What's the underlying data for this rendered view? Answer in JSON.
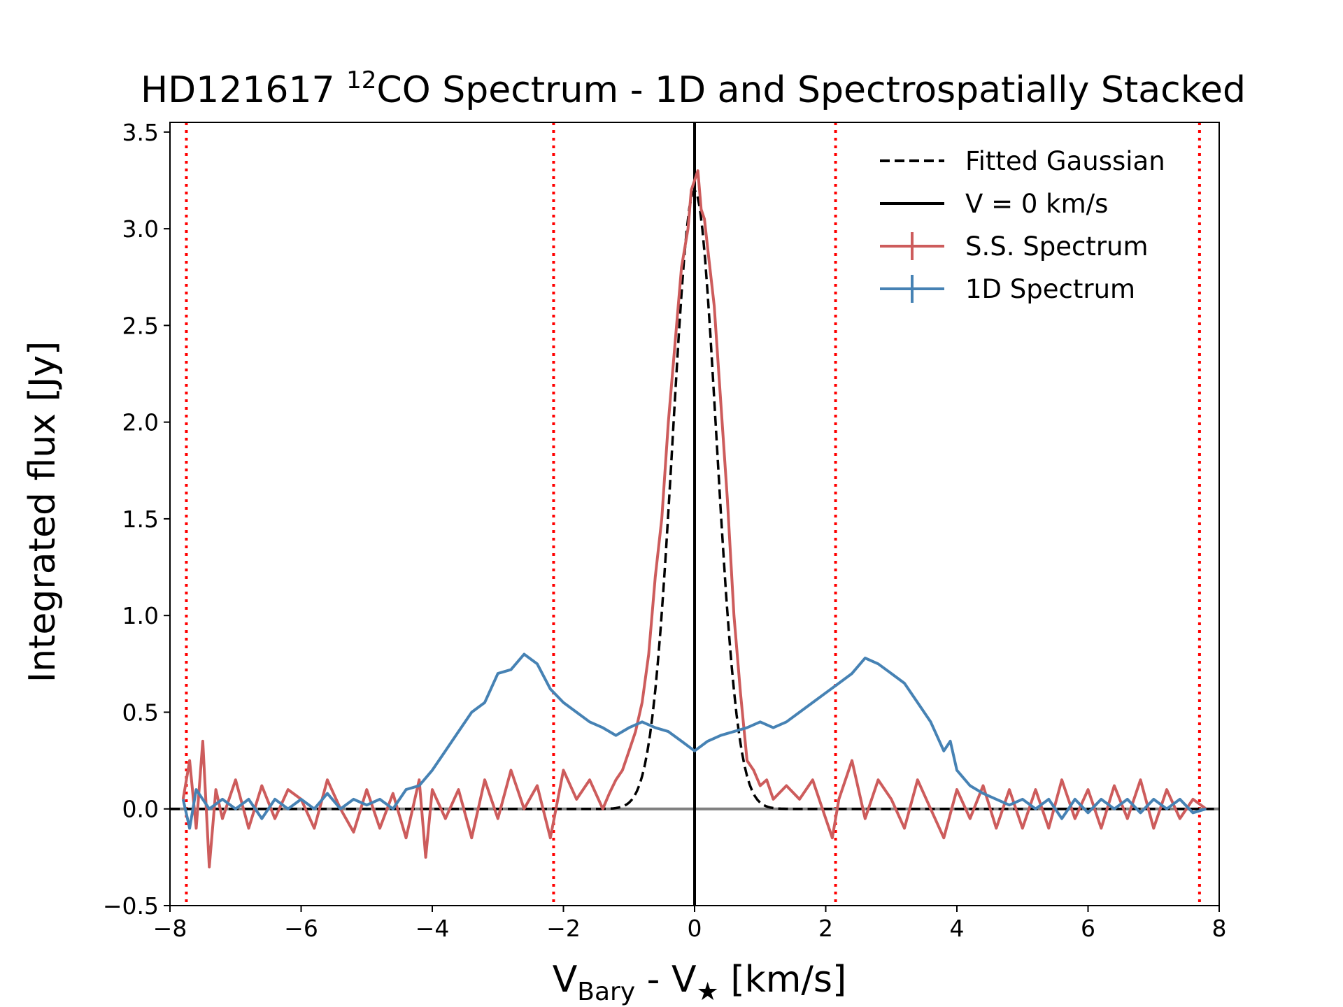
{
  "chart_data": {
    "type": "line",
    "title": {
      "prefix": "HD121617 ",
      "superscript": "12",
      "suffix": "CO Spectrum - 1D and Spectrospatially Stacked"
    },
    "xlabel": {
      "v1": "V",
      "v1_sub": "Bary",
      "mid": " -  V",
      "v2_sub": "★",
      "unit": " [km/s]"
    },
    "ylabel": "Integrated flux [Jy]",
    "xlim": [
      -8,
      8
    ],
    "ylim": [
      -0.5,
      3.55
    ],
    "xticks": [
      -8,
      -6,
      -4,
      -2,
      0,
      2,
      4,
      6,
      8
    ],
    "xtick_labels": [
      "−8",
      "−6",
      "−4",
      "−2",
      "0",
      "2",
      "4",
      "6",
      "8"
    ],
    "yticks": [
      -0.5,
      0.0,
      0.5,
      1.0,
      1.5,
      2.0,
      2.5,
      3.0,
      3.5
    ],
    "ytick_labels": [
      "−0.5",
      "0.0",
      "0.5",
      "1.0",
      "1.5",
      "2.0",
      "2.5",
      "3.0",
      "3.5"
    ],
    "grid": false,
    "legend_position": "top-right",
    "legend": [
      {
        "label": "Fitted Gaussian",
        "style": "dashed",
        "color": "#000000"
      },
      {
        "label": "V = 0 km/s",
        "style": "solid",
        "color": "#000000"
      },
      {
        "label": "S.S. Spectrum",
        "style": "errorbar",
        "color": "#cd5c5c"
      },
      {
        "label": "1D Spectrum",
        "style": "errorbar",
        "color": "#4682b4"
      }
    ],
    "reference_lines": {
      "vertical_dotted_red_x": [
        -7.75,
        -2.15,
        2.15,
        7.7
      ],
      "vertical_solid_black_x": 0,
      "horizontal_gray_y": 0
    },
    "gaussian_fit": {
      "amplitude": 3.2,
      "center": 0,
      "sigma": 0.33
    },
    "series": [
      {
        "name": "S.S. Spectrum",
        "color": "#cd5c5c",
        "points": [
          [
            -7.8,
            0.05
          ],
          [
            -7.7,
            0.25
          ],
          [
            -7.6,
            -0.1
          ],
          [
            -7.5,
            0.35
          ],
          [
            -7.4,
            -0.3
          ],
          [
            -7.3,
            0.1
          ],
          [
            -7.2,
            -0.05
          ],
          [
            -7.0,
            0.15
          ],
          [
            -6.8,
            -0.1
          ],
          [
            -6.6,
            0.12
          ],
          [
            -6.4,
            -0.05
          ],
          [
            -6.2,
            0.1
          ],
          [
            -6.0,
            0.05
          ],
          [
            -5.8,
            -0.1
          ],
          [
            -5.6,
            0.15
          ],
          [
            -5.4,
            0.0
          ],
          [
            -5.2,
            -0.12
          ],
          [
            -5.0,
            0.1
          ],
          [
            -4.8,
            -0.1
          ],
          [
            -4.6,
            0.08
          ],
          [
            -4.4,
            -0.15
          ],
          [
            -4.2,
            0.15
          ],
          [
            -4.1,
            -0.25
          ],
          [
            -4.0,
            0.1
          ],
          [
            -3.8,
            -0.05
          ],
          [
            -3.6,
            0.1
          ],
          [
            -3.4,
            -0.15
          ],
          [
            -3.2,
            0.15
          ],
          [
            -3.0,
            -0.05
          ],
          [
            -2.8,
            0.2
          ],
          [
            -2.6,
            0.0
          ],
          [
            -2.4,
            0.12
          ],
          [
            -2.2,
            -0.15
          ],
          [
            -2.0,
            0.2
          ],
          [
            -1.8,
            0.05
          ],
          [
            -1.6,
            0.15
          ],
          [
            -1.4,
            0.0
          ],
          [
            -1.3,
            0.08
          ],
          [
            -1.2,
            0.15
          ],
          [
            -1.1,
            0.2
          ],
          [
            -1.0,
            0.3
          ],
          [
            -0.9,
            0.4
          ],
          [
            -0.8,
            0.55
          ],
          [
            -0.7,
            0.8
          ],
          [
            -0.6,
            1.2
          ],
          [
            -0.5,
            1.5
          ],
          [
            -0.4,
            2.0
          ],
          [
            -0.3,
            2.4
          ],
          [
            -0.2,
            2.8
          ],
          [
            -0.1,
            3.0
          ],
          [
            -0.05,
            3.2
          ],
          [
            0.0,
            3.25
          ],
          [
            0.05,
            3.3
          ],
          [
            0.1,
            3.1
          ],
          [
            0.15,
            3.05
          ],
          [
            0.2,
            2.9
          ],
          [
            0.3,
            2.6
          ],
          [
            0.4,
            2.1
          ],
          [
            0.5,
            1.6
          ],
          [
            0.6,
            1.0
          ],
          [
            0.7,
            0.6
          ],
          [
            0.8,
            0.25
          ],
          [
            0.9,
            0.2
          ],
          [
            1.0,
            0.12
          ],
          [
            1.1,
            0.15
          ],
          [
            1.2,
            0.05
          ],
          [
            1.4,
            0.12
          ],
          [
            1.6,
            0.05
          ],
          [
            1.8,
            0.15
          ],
          [
            2.0,
            -0.05
          ],
          [
            2.1,
            -0.15
          ],
          [
            2.2,
            0.05
          ],
          [
            2.4,
            0.25
          ],
          [
            2.6,
            -0.05
          ],
          [
            2.8,
            0.15
          ],
          [
            3.0,
            0.05
          ],
          [
            3.2,
            -0.1
          ],
          [
            3.4,
            0.15
          ],
          [
            3.6,
            0.0
          ],
          [
            3.8,
            -0.15
          ],
          [
            4.0,
            0.1
          ],
          [
            4.2,
            -0.05
          ],
          [
            4.4,
            0.12
          ],
          [
            4.6,
            -0.1
          ],
          [
            4.8,
            0.1
          ],
          [
            5.0,
            -0.1
          ],
          [
            5.2,
            0.1
          ],
          [
            5.4,
            -0.1
          ],
          [
            5.6,
            0.15
          ],
          [
            5.8,
            -0.05
          ],
          [
            6.0,
            0.1
          ],
          [
            6.2,
            -0.1
          ],
          [
            6.4,
            0.12
          ],
          [
            6.6,
            -0.05
          ],
          [
            6.8,
            0.15
          ],
          [
            7.0,
            -0.1
          ],
          [
            7.2,
            0.1
          ],
          [
            7.4,
            -0.05
          ],
          [
            7.6,
            0.05
          ],
          [
            7.8,
            0.0
          ]
        ]
      },
      {
        "name": "1D Spectrum",
        "color": "#4682b4",
        "points": [
          [
            -7.8,
            0.05
          ],
          [
            -7.7,
            -0.1
          ],
          [
            -7.6,
            0.1
          ],
          [
            -7.4,
            0.0
          ],
          [
            -7.2,
            0.05
          ],
          [
            -7.0,
            0.0
          ],
          [
            -6.8,
            0.05
          ],
          [
            -6.6,
            -0.05
          ],
          [
            -6.4,
            0.05
          ],
          [
            -6.2,
            0.0
          ],
          [
            -6.0,
            0.05
          ],
          [
            -5.8,
            0.0
          ],
          [
            -5.6,
            0.08
          ],
          [
            -5.4,
            0.0
          ],
          [
            -5.2,
            0.05
          ],
          [
            -5.0,
            0.02
          ],
          [
            -4.8,
            0.05
          ],
          [
            -4.6,
            0.0
          ],
          [
            -4.4,
            0.1
          ],
          [
            -4.2,
            0.12
          ],
          [
            -4.0,
            0.2
          ],
          [
            -3.8,
            0.3
          ],
          [
            -3.6,
            0.4
          ],
          [
            -3.4,
            0.5
          ],
          [
            -3.2,
            0.55
          ],
          [
            -3.0,
            0.7
          ],
          [
            -2.8,
            0.72
          ],
          [
            -2.6,
            0.8
          ],
          [
            -2.4,
            0.75
          ],
          [
            -2.2,
            0.62
          ],
          [
            -2.0,
            0.55
          ],
          [
            -1.8,
            0.5
          ],
          [
            -1.6,
            0.45
          ],
          [
            -1.4,
            0.42
          ],
          [
            -1.2,
            0.38
          ],
          [
            -1.0,
            0.42
          ],
          [
            -0.8,
            0.45
          ],
          [
            -0.6,
            0.42
          ],
          [
            -0.4,
            0.4
          ],
          [
            -0.2,
            0.35
          ],
          [
            0.0,
            0.3
          ],
          [
            0.2,
            0.35
          ],
          [
            0.4,
            0.38
          ],
          [
            0.6,
            0.4
          ],
          [
            0.8,
            0.42
          ],
          [
            1.0,
            0.45
          ],
          [
            1.2,
            0.42
          ],
          [
            1.4,
            0.45
          ],
          [
            1.6,
            0.5
          ],
          [
            1.8,
            0.55
          ],
          [
            2.0,
            0.6
          ],
          [
            2.2,
            0.65
          ],
          [
            2.4,
            0.7
          ],
          [
            2.6,
            0.78
          ],
          [
            2.8,
            0.75
          ],
          [
            3.0,
            0.7
          ],
          [
            3.2,
            0.65
          ],
          [
            3.4,
            0.55
          ],
          [
            3.6,
            0.45
          ],
          [
            3.8,
            0.3
          ],
          [
            3.9,
            0.35
          ],
          [
            4.0,
            0.2
          ],
          [
            4.2,
            0.12
          ],
          [
            4.4,
            0.08
          ],
          [
            4.6,
            0.05
          ],
          [
            4.8,
            0.02
          ],
          [
            5.0,
            0.05
          ],
          [
            5.2,
            0.0
          ],
          [
            5.4,
            0.05
          ],
          [
            5.6,
            -0.05
          ],
          [
            5.8,
            0.05
          ],
          [
            6.0,
            -0.02
          ],
          [
            6.2,
            0.05
          ],
          [
            6.4,
            0.0
          ],
          [
            6.6,
            0.05
          ],
          [
            6.8,
            -0.02
          ],
          [
            7.0,
            0.05
          ],
          [
            7.2,
            0.0
          ],
          [
            7.4,
            0.05
          ],
          [
            7.6,
            -0.02
          ],
          [
            7.8,
            0.0
          ]
        ]
      }
    ]
  }
}
